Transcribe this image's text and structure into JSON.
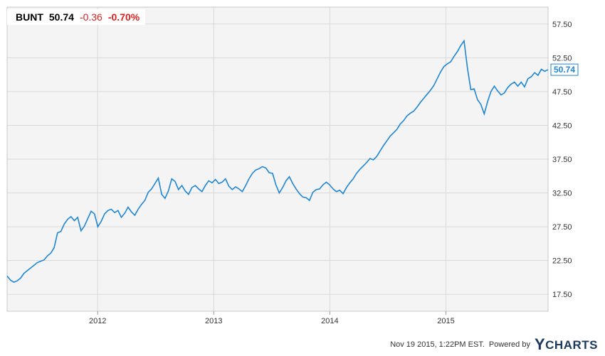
{
  "quote": {
    "symbol": "BUNT",
    "price": "50.74",
    "change": "-0.36",
    "change_pct": "-0.70%"
  },
  "footer": {
    "timestamp": "Nov 19 2015, 1:22PM EST.",
    "powered_by": "Powered by",
    "logo": "YCHARTS"
  },
  "colors": {
    "line": "#1f86d6",
    "down": "#e02020",
    "grid": "#d9d9d9",
    "plot_bg": "#f4f4f4",
    "brand": "#1b3a5c"
  },
  "chart_data": {
    "type": "line",
    "series": [
      {
        "values": [
          20.2,
          19.6,
          19.3,
          19.5,
          19.9,
          20.6,
          21.0,
          21.4,
          21.8,
          22.2,
          22.4,
          22.6,
          23.2,
          23.6,
          24.4,
          26.6,
          26.8,
          27.9,
          28.6,
          29.0,
          28.4,
          28.9,
          26.9,
          27.6,
          28.7,
          29.8,
          29.4,
          27.5,
          28.3,
          29.4,
          29.9,
          30.1,
          29.6,
          29.9,
          28.9,
          29.5,
          30.4,
          29.7,
          29.2,
          30.1,
          30.8,
          31.4,
          32.6,
          33.1,
          33.9,
          34.7,
          32.3,
          31.7,
          32.8,
          34.6,
          34.2,
          33.0,
          33.6,
          32.8,
          32.3,
          33.3,
          33.6,
          33.1,
          32.7,
          33.6,
          34.3,
          34.0,
          34.5,
          33.9,
          34.1,
          34.6,
          33.5,
          33.0,
          33.4,
          33.1,
          32.7,
          33.6,
          34.6,
          35.4,
          35.9,
          36.1,
          36.4,
          36.2,
          35.5,
          35.4,
          33.7,
          32.5,
          33.3,
          34.3,
          34.9,
          33.9,
          33.1,
          32.4,
          31.9,
          31.8,
          31.4,
          32.6,
          33.0,
          33.1,
          33.7,
          34.1,
          33.7,
          33.1,
          32.7,
          32.9,
          32.4,
          33.3,
          34.0,
          34.6,
          35.4,
          36.0,
          36.5,
          37.0,
          37.6,
          37.4,
          37.9,
          38.7,
          39.5,
          40.2,
          40.9,
          41.4,
          41.9,
          42.7,
          43.2,
          43.9,
          44.3,
          44.6,
          45.2,
          45.9,
          46.5,
          47.1,
          47.7,
          48.4,
          49.4,
          50.4,
          51.2,
          51.6,
          51.9,
          52.7,
          53.4,
          54.3,
          55.0,
          51.0,
          47.8,
          47.9,
          46.3,
          45.6,
          44.2,
          46.0,
          47.5,
          48.3,
          47.6,
          47.0,
          47.3,
          48.1,
          48.6,
          48.9,
          48.3,
          48.9,
          48.2,
          49.4,
          49.7,
          50.3,
          49.9,
          50.8,
          50.5,
          50.74
        ]
      }
    ],
    "x_ticks": [
      {
        "label": "2012",
        "x": 2012.0
      },
      {
        "label": "2013",
        "x": 2013.0
      },
      {
        "label": "2014",
        "x": 2014.0
      },
      {
        "label": "2015",
        "x": 2015.0
      }
    ],
    "x_range": [
      2011.22,
      2015.88
    ],
    "y_ticks": [
      "17.50",
      "22.50",
      "27.50",
      "32.50",
      "37.50",
      "42.50",
      "47.50",
      "52.50",
      "57.50"
    ],
    "ylim": [
      15.0,
      60.0
    ],
    "last_value_label": "50.74",
    "grid": true
  }
}
